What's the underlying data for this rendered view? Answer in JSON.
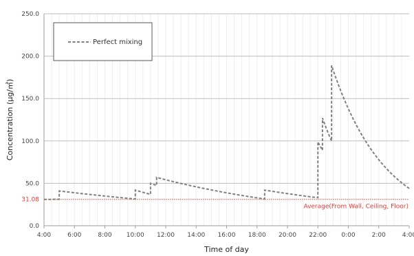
{
  "chart_data": {
    "type": "line",
    "title": "",
    "xlabel": "Time of day",
    "ylabel": "Concentration (µg/㎥)",
    "xlim": [
      4,
      28
    ],
    "ylim": [
      0,
      250
    ],
    "y_ticks": [
      "0.0",
      "50.0",
      "100.0",
      "150.0",
      "200.0",
      "250.0"
    ],
    "x_tick_labels": [
      "4:00",
      "6:00",
      "8:00",
      "10:00",
      "12:00",
      "14:00",
      "16:00",
      "18:00",
      "20:00",
      "22:00",
      "0:00",
      "2:00",
      "4:00"
    ],
    "grid": "horizontal major, vertical light minor",
    "legend": {
      "position": "top-left",
      "entries": [
        "Perfect mixing"
      ]
    },
    "series": [
      {
        "name": "Perfect mixing",
        "style": "dashed",
        "color": "#7f7f7f",
        "segments": [
          {
            "start": 4.0,
            "end": 5.0,
            "c0": 31.0,
            "c1": 31.2
          },
          {
            "start": 5.0,
            "end": 10.0,
            "c0": 41.0,
            "c1": 31.5
          },
          {
            "start": 10.0,
            "end": 11.0,
            "c0": 42.0,
            "c1": 37.0
          },
          {
            "start": 11.0,
            "end": 11.4,
            "c0": 50.0,
            "c1": 47.5
          },
          {
            "start": 11.4,
            "end": 18.5,
            "c0": 57.0,
            "c1": 31.5
          },
          {
            "start": 18.5,
            "end": 22.0,
            "c0": 42.0,
            "c1": 33.0
          },
          {
            "start": 22.0,
            "end": 22.3,
            "c0": 99.0,
            "c1": 89.0
          },
          {
            "start": 22.3,
            "end": 22.9,
            "c0": 127.0,
            "c1": 100.0
          },
          {
            "start": 22.9,
            "end": 28.0,
            "c0": 189.0,
            "c1": 44.0
          }
        ]
      }
    ],
    "reference_line": {
      "value": 31.08,
      "value_label": "31.08",
      "label": "Average(From Wall, Ceiling, Floor)",
      "color": "#e53935"
    }
  }
}
